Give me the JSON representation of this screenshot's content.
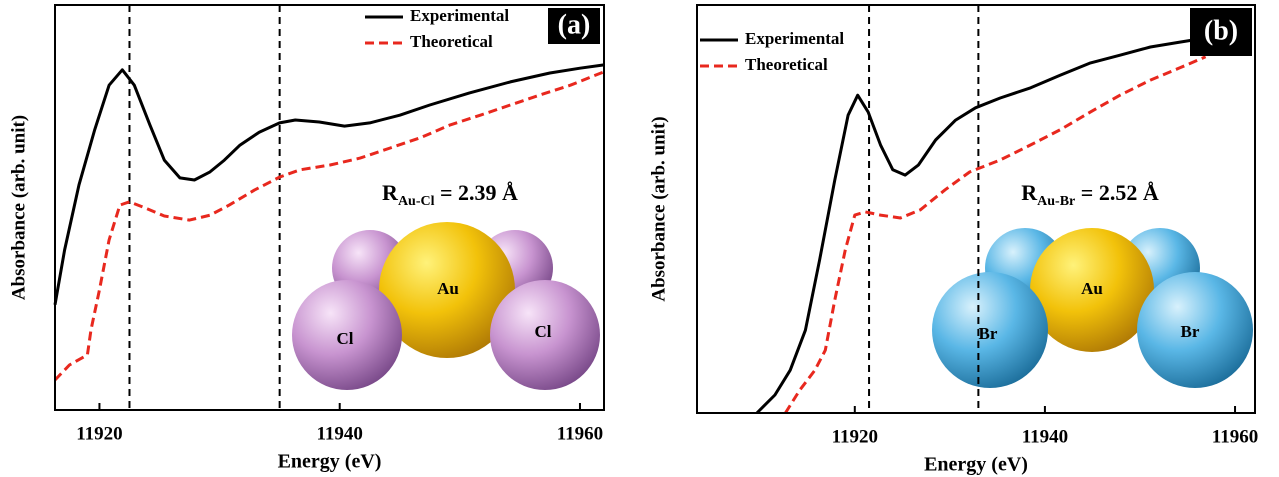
{
  "chart_data": [
    {
      "type": "line",
      "panel_label": "(a)",
      "xlabel": "Energy (eV)",
      "ylabel": "Absorbance (arb. unit)",
      "xlim": [
        11916.3,
        11962
      ],
      "xticks": [
        11920,
        11940,
        11960
      ],
      "ylim": [
        0,
        1
      ],
      "vlines": [
        11922.5,
        11935
      ],
      "legend": "upper right",
      "series": [
        {
          "name": "Experimental",
          "color": "#000000",
          "dash": false,
          "x": [
            11916.3,
            11917.1,
            11918.3,
            11919.6,
            11920.8,
            11921.9,
            11922.9,
            11924.2,
            11925.4,
            11926.7,
            11927.9,
            11929.2,
            11930.4,
            11931.7,
            11933.3,
            11935.0,
            11936.3,
            11938.3,
            11940.4,
            11942.5,
            11945.0,
            11947.5,
            11950.8,
            11954.2,
            11957.5,
            11960.0,
            11962.0
          ],
          "values": [
            0.26,
            0.395,
            0.556,
            0.691,
            0.802,
            0.84,
            0.802,
            0.704,
            0.617,
            0.573,
            0.568,
            0.588,
            0.617,
            0.654,
            0.686,
            0.709,
            0.716,
            0.711,
            0.701,
            0.709,
            0.728,
            0.753,
            0.783,
            0.81,
            0.832,
            0.844,
            0.852
          ]
        },
        {
          "name": "Theoretical",
          "color": "#e8281e",
          "dash": true,
          "x": [
            11916.3,
            11917.5,
            11919.0,
            11919.3,
            11920.0,
            11920.8,
            11921.7,
            11922.5,
            11923.8,
            11925.4,
            11927.5,
            11929.2,
            11930.8,
            11932.9,
            11935.0,
            11936.7,
            11939.2,
            11941.7,
            11944.2,
            11946.7,
            11949.2,
            11951.7,
            11954.2,
            11956.7,
            11959.2,
            11962.0
          ],
          "values": [
            0.074,
            0.111,
            0.136,
            0.198,
            0.296,
            0.42,
            0.506,
            0.514,
            0.499,
            0.479,
            0.469,
            0.481,
            0.506,
            0.543,
            0.575,
            0.593,
            0.605,
            0.622,
            0.647,
            0.672,
            0.704,
            0.728,
            0.753,
            0.778,
            0.802,
            0.835
          ]
        }
      ],
      "annotation": {
        "symbol": "R",
        "subscript": "Au-Cl",
        "text": " = 2.39 Å"
      },
      "atom_labels": [
        "Au",
        "Cl",
        "Cl"
      ]
    },
    {
      "type": "line",
      "panel_label": "(b)",
      "xlabel": "Energy (eV)",
      "ylabel": "Absorbance (arb. unit)",
      "xlim": [
        11903.4,
        11962.1
      ],
      "xticks": [
        11920,
        11940,
        11960
      ],
      "ylim": [
        0,
        1
      ],
      "vlines": [
        11921.5,
        11933
      ],
      "legend": "upper left",
      "series": [
        {
          "name": "Experimental",
          "color": "#000000",
          "dash": false,
          "x": [
            11909.7,
            11911.6,
            11913.2,
            11914.8,
            11916.3,
            11917.9,
            11919.3,
            11920.3,
            11921.4,
            11922.7,
            11924.0,
            11925.3,
            11926.7,
            11928.5,
            11930.6,
            11932.7,
            11935.3,
            11938.5,
            11941.6,
            11944.8,
            11947.9,
            11951.1,
            11954.2,
            11956.9
          ],
          "values": [
            0,
            0.044,
            0.105,
            0.203,
            0.375,
            0.571,
            0.73,
            0.779,
            0.738,
            0.657,
            0.596,
            0.583,
            0.608,
            0.669,
            0.718,
            0.748,
            0.772,
            0.797,
            0.828,
            0.858,
            0.877,
            0.897,
            0.909,
            0.919
          ]
        },
        {
          "name": "Theoretical",
          "color": "#e8281e",
          "dash": true,
          "x": [
            11912.7,
            11914.2,
            11915.8,
            11916.9,
            11917.9,
            11919.0,
            11920.0,
            11921.1,
            11922.7,
            11924.8,
            11926.9,
            11929.5,
            11932.1,
            11935.3,
            11938.5,
            11941.6,
            11944.8,
            11947.9,
            11951.1,
            11954.2,
            11956.9
          ],
          "values": [
            0,
            0.056,
            0.105,
            0.154,
            0.277,
            0.4,
            0.485,
            0.493,
            0.485,
            0.478,
            0.498,
            0.547,
            0.591,
            0.62,
            0.657,
            0.694,
            0.738,
            0.779,
            0.816,
            0.846,
            0.873
          ]
        }
      ],
      "annotation": {
        "symbol": "R",
        "subscript": "Au-Br",
        "text": " = 2.52 Å"
      },
      "atom_labels": [
        "Au",
        "Br",
        "Br"
      ]
    }
  ]
}
